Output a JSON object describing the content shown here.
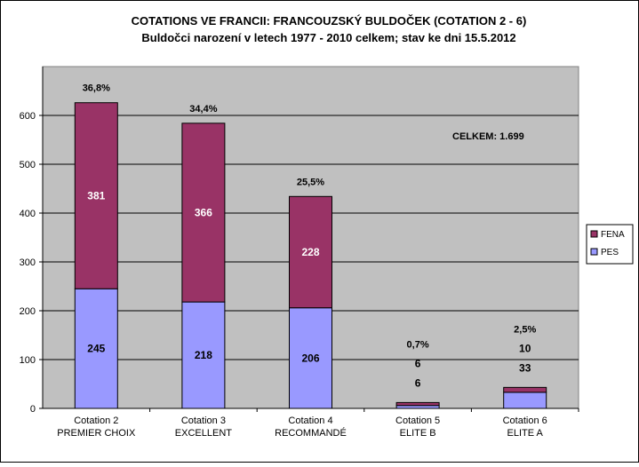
{
  "chart_data": {
    "type": "bar",
    "stacked": true,
    "title": "COTATIONS  VE FRANCII:  FRANCOUZSKÝ  BULDOČEK  (COTATION  2 - 6)",
    "subtitle": "Buldočci narození v letech 1977 - 2010 celkem; stav ke dni 15.5.2012",
    "categories": [
      [
        "Cotation 2",
        "PREMIER CHOIX"
      ],
      [
        "Cotation 3",
        "EXCELLENT"
      ],
      [
        "Cotation 4",
        "RECOMMANDÉ"
      ],
      [
        "Cotation 5",
        "ELITE B"
      ],
      [
        "Cotation 6",
        "ELITE A"
      ]
    ],
    "series": [
      {
        "name": "PES",
        "color": "#9999ff",
        "values": [
          245,
          218,
          206,
          6,
          33
        ]
      },
      {
        "name": "FENA",
        "color": "#993366",
        "values": [
          381,
          366,
          228,
          6,
          10
        ]
      }
    ],
    "segment_labels": {
      "PES": [
        "245",
        "218",
        "206",
        "6",
        "33"
      ],
      "FENA": [
        "381",
        "366",
        "228",
        "6",
        "10"
      ]
    },
    "percent_labels": [
      "36,8%",
      "34,4%",
      "25,5%",
      "0,7%",
      "2,5%"
    ],
    "ylim": [
      0,
      600
    ],
    "yticks": [
      0,
      100,
      200,
      300,
      400,
      500,
      600
    ],
    "grid": true,
    "plot_background": "#c0c0c0",
    "legend_position": "right",
    "annotation": "CELKEM:  1.699"
  }
}
